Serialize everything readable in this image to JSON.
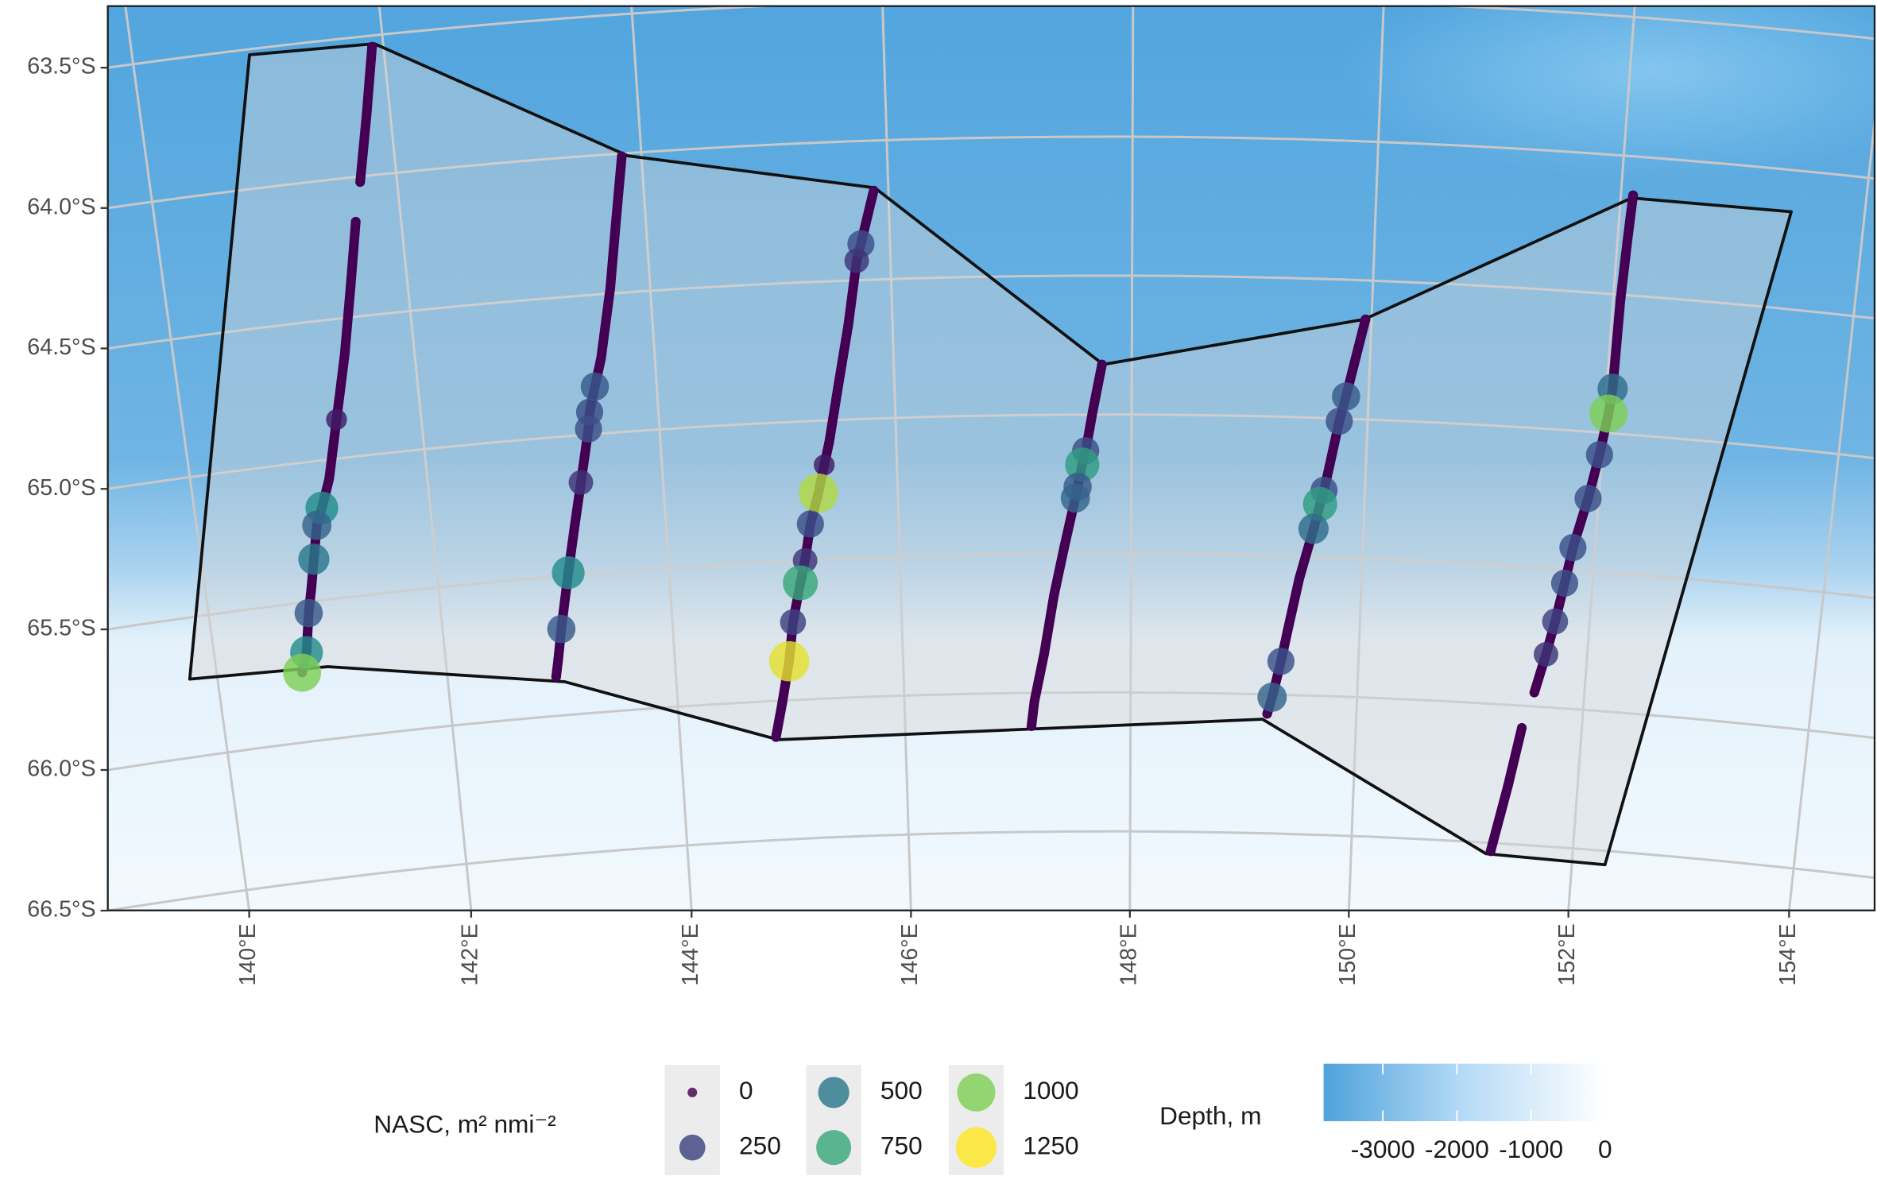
{
  "chart_data": {
    "type": "map",
    "xticks": [
      {
        "value": 140,
        "label": "140°E"
      },
      {
        "value": 142,
        "label": "142°E"
      },
      {
        "value": 144,
        "label": "144°E"
      },
      {
        "value": 146,
        "label": "146°E"
      },
      {
        "value": 148,
        "label": "148°E"
      },
      {
        "value": 150,
        "label": "150°E"
      },
      {
        "value": 152,
        "label": "152°E"
      },
      {
        "value": 154,
        "label": "154°E"
      }
    ],
    "yticks": [
      {
        "value": -63.5,
        "label": "63.5°S"
      },
      {
        "value": -64.0,
        "label": "64.0°S"
      },
      {
        "value": -64.5,
        "label": "64.5°S"
      },
      {
        "value": -65.0,
        "label": "65.0°S"
      },
      {
        "value": -65.5,
        "label": "65.5°S"
      },
      {
        "value": -66.0,
        "label": "66.0°S"
      },
      {
        "value": -66.5,
        "label": "66.5°S"
      }
    ],
    "grid": true,
    "survey_area": {
      "x": [
        140.93,
        141.93,
        143.89,
        145.89,
        147.76,
        149.94,
        152.09,
        153.4,
        152.3,
        151.22,
        149.17,
        144.87,
        143.02,
        140.97,
        139.76
      ],
      "y": [
        -63.52,
        -63.53,
        -64.01,
        -64.17,
        -64.82,
        -64.64,
        -64.15,
        -64.15,
        -66.55,
        -66.54,
        -66.09,
        -66.14,
        -65.88,
        -65.74,
        -65.72
      ]
    },
    "x": [
      141.91,
      141.81,
      141.7,
      null,
      141.63,
      141.53,
      141.42,
      141.29,
      141.17,
      141.08,
      141.02,
      140.96,
      140.91,
      140.86,
      140.8,
      140.74,
      null,
      143.84,
      143.76,
      143.67,
      143.55,
      143.48,
      143.42,
      143.4,
      143.3,
      143.22,
      143.13,
      143.03,
      142.98,
      142.95,
      null,
      145.88,
      145.76,
      145.72,
      145.63,
      145.53,
      145.43,
      145.38,
      145.32,
      145.24,
      145.18,
      145.13,
      145.05,
      145.0,
      144.92,
      144.85,
      null,
      147.75,
      147.67,
      147.61,
      147.58,
      147.54,
      147.52,
      147.42,
      147.33,
      147.24,
      147.15,
      147.12,
      null,
      149.95,
      149.88,
      149.81,
      149.76,
      149.69,
      149.65,
      149.62,
      149.57,
      149.46,
      149.37,
      149.32,
      149.25,
      149.21,
      null,
      152.1,
      152.08,
      152.06,
      152.05,
      152.03,
      151.98,
      151.91,
      151.81,
      151.76,
      151.7,
      151.64,
      151.56,
      null,
      151.47,
      151.38,
      151.26
    ],
    "y": [
      -63.54,
      -63.78,
      -64.02,
      null,
      -64.16,
      -64.39,
      -64.63,
      -64.86,
      -65.07,
      -65.17,
      -65.23,
      -65.35,
      -65.45,
      -65.54,
      -65.68,
      -65.75,
      null,
      -64.01,
      -64.23,
      -64.48,
      -64.73,
      -64.83,
      -64.92,
      -64.98,
      -65.17,
      -65.32,
      -65.49,
      -65.69,
      -65.8,
      -65.86,
      null,
      -64.18,
      -64.37,
      -64.43,
      -64.66,
      -64.87,
      -65.08,
      -65.16,
      -65.26,
      -65.37,
      -65.5,
      -65.58,
      -65.72,
      -65.86,
      -66.01,
      -66.13,
      null,
      -64.82,
      -64.99,
      -65.13,
      -65.18,
      -65.26,
      -65.3,
      -65.48,
      -65.65,
      -65.86,
      -66.03,
      -66.12,
      null,
      -64.64,
      -64.78,
      -64.92,
      -65.01,
      -65.17,
      -65.26,
      -65.31,
      -65.4,
      -65.58,
      -65.77,
      -65.88,
      -66.01,
      -66.07,
      null,
      -64.14,
      -64.31,
      -64.52,
      -64.84,
      -64.93,
      -65.08,
      -65.24,
      -65.42,
      -65.55,
      -65.69,
      -65.81,
      -65.95,
      null,
      -66.08,
      -66.29,
      -66.53
    ],
    "values": [
      0,
      0,
      0,
      null,
      0,
      0,
      0,
      100,
      0,
      600,
      400,
      500,
      0,
      350,
      600,
      1000,
      null,
      0,
      0,
      0,
      0,
      350,
      300,
      300,
      200,
      0,
      600,
      350,
      0,
      0,
      null,
      0,
      300,
      200,
      0,
      0,
      0,
      100,
      1100,
      300,
      200,
      750,
      250,
      1200,
      0,
      0,
      null,
      0,
      0,
      300,
      700,
      350,
      400,
      0,
      0,
      0,
      0,
      0,
      null,
      0,
      0,
      350,
      300,
      0,
      300,
      700,
      450,
      0,
      0,
      300,
      400,
      0,
      null,
      0,
      0,
      0,
      450,
      1000,
      300,
      300,
      300,
      300,
      250,
      200,
      0,
      null,
      0,
      0,
      0
    ],
    "colors": [
      "#440154",
      "#3b528b",
      "#21918c",
      "#5ec962",
      "#fde725"
    ],
    "size_legend": {
      "title": "NASC, m² nmi⁻²",
      "breaks": [
        0,
        250,
        500,
        750,
        1000,
        1250
      ],
      "lim": [
        0,
        1250
      ]
    },
    "depth_legend": {
      "title": "Depth, m",
      "lim": [
        -3800,
        0
      ],
      "ticks": [
        -3000,
        -2000,
        -1000,
        0
      ],
      "colors": [
        "#4fa3db",
        "#b6dbf6",
        "#ffffff"
      ]
    }
  }
}
